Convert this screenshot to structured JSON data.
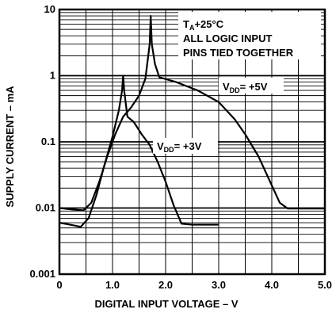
{
  "chart_data": {
    "type": "line",
    "xlabel": "DIGITAL INPUT VOLTAGE – V",
    "ylabel": "SUPPLY CURRENT – mA",
    "xlim": [
      0,
      5.0
    ],
    "ylim": [
      0.001,
      10
    ],
    "y_scale": "log",
    "grid": true,
    "x_ticks": [
      {
        "value": 0,
        "label": "0"
      },
      {
        "value": 1,
        "label": "1.0"
      },
      {
        "value": 2,
        "label": "2.0"
      },
      {
        "value": 3,
        "label": "3.0"
      },
      {
        "value": 4,
        "label": "4.0"
      },
      {
        "value": 5,
        "label": "5.0"
      }
    ],
    "y_ticks": [
      {
        "value": 10,
        "label": "10"
      },
      {
        "value": 1,
        "label": "1"
      },
      {
        "value": 0.1,
        "label": "0.1"
      },
      {
        "value": 0.01,
        "label": "0.01"
      },
      {
        "value": 0.001,
        "label": "0.001"
      }
    ],
    "annotations": {
      "condition_ta": "+25°C",
      "condition_line2": "ALL LOGIC INPUT",
      "condition_line3": "PINS TIED TOGETHER",
      "series_5v_value": "= +5V",
      "series_3v_value": "= +3V"
    },
    "series": [
      {
        "name": "VDD = +5V",
        "points": [
          [
            0,
            0.01
          ],
          [
            0.25,
            0.0095
          ],
          [
            0.45,
            0.0092
          ],
          [
            0.6,
            0.012
          ],
          [
            0.75,
            0.025
          ],
          [
            0.9,
            0.06
          ],
          [
            1.05,
            0.13
          ],
          [
            1.2,
            0.24
          ],
          [
            1.35,
            0.33
          ],
          [
            1.5,
            0.5
          ],
          [
            1.62,
            0.9
          ],
          [
            1.7,
            3.0
          ],
          [
            1.72,
            8.0
          ],
          [
            1.74,
            3.0
          ],
          [
            1.8,
            1.5
          ],
          [
            1.88,
            0.95
          ],
          [
            2.2,
            0.8
          ],
          [
            2.6,
            0.6
          ],
          [
            3.0,
            0.4
          ],
          [
            3.3,
            0.22
          ],
          [
            3.5,
            0.13
          ],
          [
            3.75,
            0.06
          ],
          [
            4.0,
            0.022
          ],
          [
            4.15,
            0.012
          ],
          [
            4.3,
            0.0098
          ],
          [
            5.0,
            0.0098
          ]
        ]
      },
      {
        "name": "VDD = +3V",
        "points": [
          [
            0,
            0.006
          ],
          [
            0.25,
            0.0055
          ],
          [
            0.4,
            0.0052
          ],
          [
            0.55,
            0.007
          ],
          [
            0.7,
            0.016
          ],
          [
            0.85,
            0.045
          ],
          [
            1.0,
            0.12
          ],
          [
            1.12,
            0.3
          ],
          [
            1.18,
            0.6
          ],
          [
            1.2,
            1.0
          ],
          [
            1.22,
            0.6
          ],
          [
            1.28,
            0.24
          ],
          [
            1.4,
            0.2
          ],
          [
            1.55,
            0.13
          ],
          [
            1.7,
            0.09
          ],
          [
            1.85,
            0.05
          ],
          [
            2.0,
            0.025
          ],
          [
            2.15,
            0.011
          ],
          [
            2.3,
            0.0058
          ],
          [
            2.5,
            0.0056
          ],
          [
            3.0,
            0.0056
          ]
        ]
      }
    ]
  }
}
